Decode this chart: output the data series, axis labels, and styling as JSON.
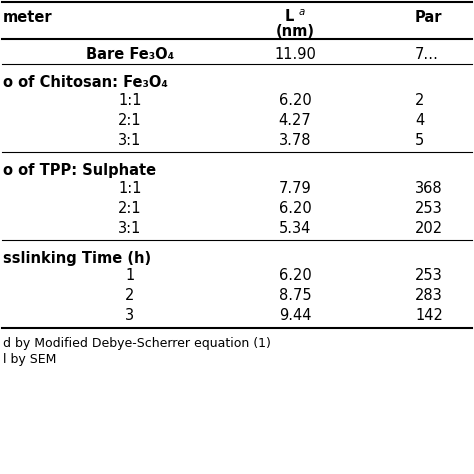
{
  "sections": [
    {
      "label": "Bare Fe₃O₄",
      "bold": true,
      "is_header_row": true,
      "rows": [
        {
          "name": "    Bare Fe₃O₄",
          "l": "11.90",
          "par": "7…",
          "bold": true,
          "indent": false
        }
      ]
    },
    {
      "label": "o of Chitosan: Fe₃O₄",
      "bold": true,
      "is_header_row": false,
      "rows": [
        {
          "name": "1:1",
          "l": "6.20",
          "par": "2",
          "bold": false,
          "indent": true
        },
        {
          "name": "2:1",
          "l": "4.27",
          "par": "4",
          "bold": false,
          "indent": true
        },
        {
          "name": "3:1",
          "l": "3.78",
          "par": "5",
          "bold": false,
          "indent": true
        }
      ]
    },
    {
      "label": "o of TPP: Sulphate",
      "bold": true,
      "is_header_row": false,
      "rows": [
        {
          "name": "1:1",
          "l": "7.79",
          "par": "368",
          "bold": false,
          "indent": true
        },
        {
          "name": "2:1",
          "l": "6.20",
          "par": "253",
          "bold": false,
          "indent": true
        },
        {
          "name": "3:1",
          "l": "5.34",
          "par": "202",
          "bold": false,
          "indent": true
        }
      ]
    },
    {
      "label": "sslinking Time (h)",
      "bold": true,
      "is_header_row": false,
      "rows": [
        {
          "name": "1",
          "l": "6.20",
          "par": "253",
          "bold": false,
          "indent": true
        },
        {
          "name": "2",
          "l": "8.75",
          "par": "283",
          "bold": false,
          "indent": true
        },
        {
          "name": "3",
          "l": "9.44",
          "par": "142",
          "bold": false,
          "indent": true
        }
      ]
    }
  ],
  "footnotes": [
    "d by Modified Debye-Scherrer equation (1)",
    "l by SEM"
  ],
  "bg_color": "#ffffff",
  "line_color": "#000000",
  "text_color": "#000000",
  "header_fontsize": 10.5,
  "body_fontsize": 10.5,
  "footnote_fontsize": 9
}
